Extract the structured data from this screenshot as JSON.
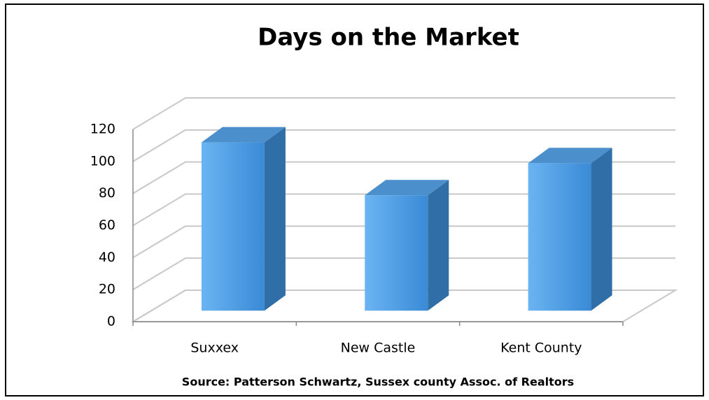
{
  "chart_data": {
    "type": "bar3d",
    "title": "Days on the Market",
    "categories": [
      "Suxxex",
      "New Castle",
      "Kent County"
    ],
    "values": [
      105,
      72,
      92
    ],
    "color": "#4a9be6",
    "ylim": [
      0,
      120
    ],
    "yticks": [
      0,
      20,
      40,
      60,
      80,
      100,
      120
    ],
    "grid": true,
    "source": "Source:  Patterson Schwartz, Sussex county Assoc. of Realtors"
  }
}
